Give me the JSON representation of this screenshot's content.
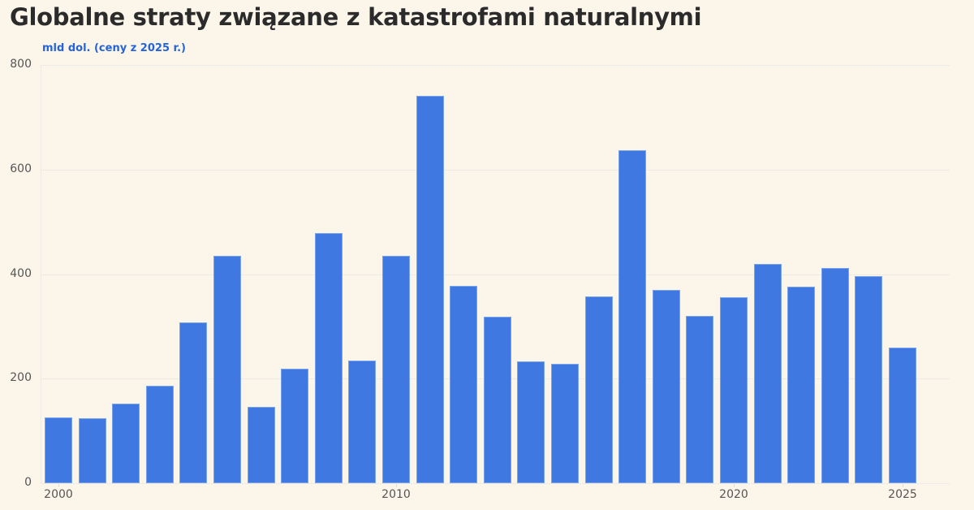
{
  "chart_data": {
    "type": "bar",
    "title": "Globalne straty związane z katastrofami naturalnymi",
    "ylabel": "mld dol. (ceny z 2025 r.)",
    "xlabel": "",
    "ylim": [
      0,
      800
    ],
    "yticks": [
      0,
      200,
      400,
      600,
      800
    ],
    "xticks": [
      "2000",
      "2010",
      "2020",
      "2025"
    ],
    "grid": true,
    "legend": null,
    "bar_color": "#3e78e0",
    "categories": [
      "2000",
      "2001",
      "2002",
      "2003",
      "2004",
      "2005",
      "2006",
      "2007",
      "2008",
      "2009",
      "2010",
      "2011",
      "2012",
      "2013",
      "2014",
      "2015",
      "2016",
      "2017",
      "2018",
      "2019",
      "2020",
      "2021",
      "2022",
      "2023",
      "2024",
      "2025"
    ],
    "values": [
      126,
      124,
      152,
      186,
      307,
      435,
      146,
      219,
      478,
      234,
      435,
      741,
      377,
      318,
      233,
      228,
      357,
      637,
      370,
      320,
      356,
      419,
      376,
      411,
      396,
      259
    ]
  }
}
